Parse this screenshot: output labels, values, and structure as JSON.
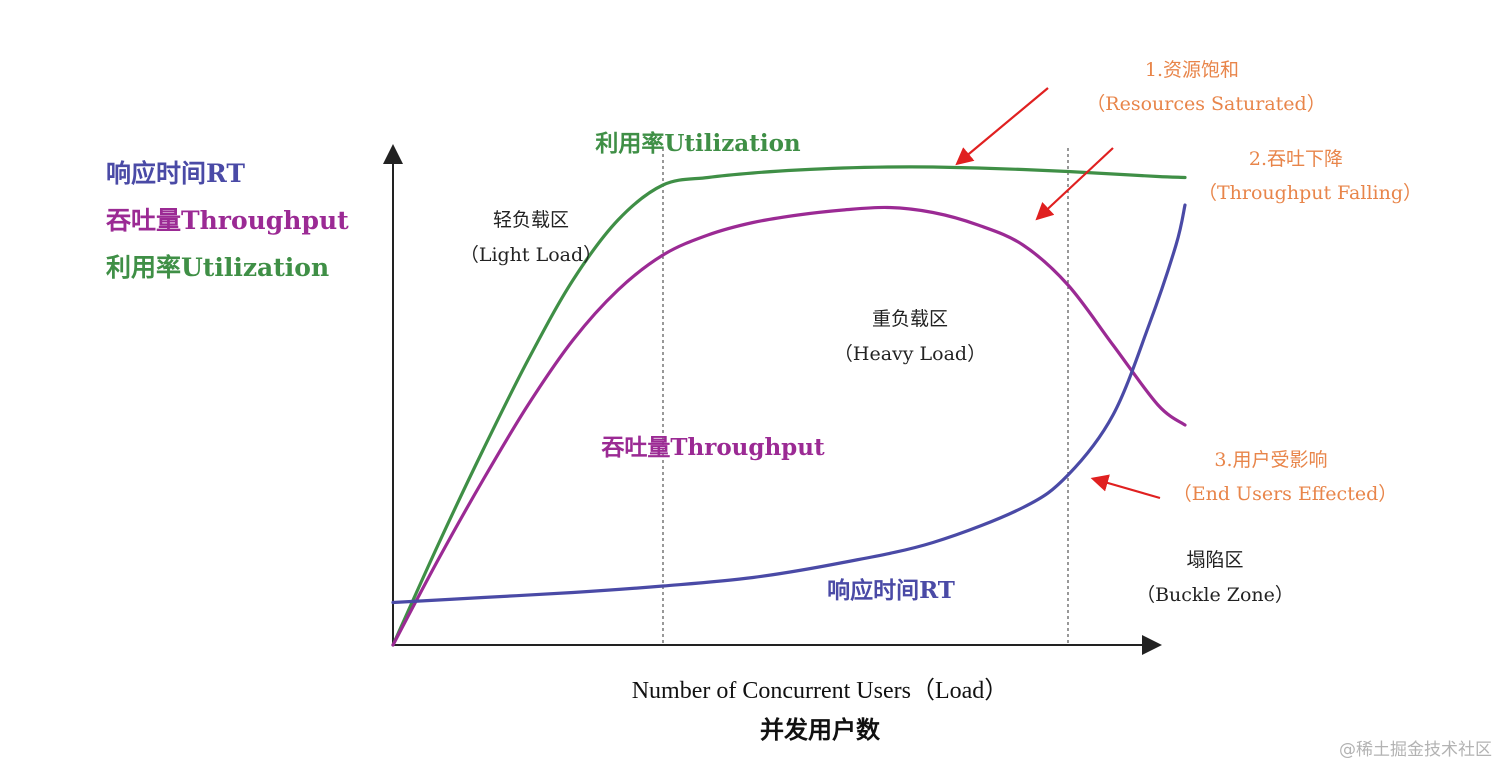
{
  "chart_data": {
    "type": "line",
    "x_range": [
      0,
      100
    ],
    "y_range": [
      0,
      100
    ],
    "xlabel": "Number of Concurrent Users（Load）",
    "xlabel_cn": "并发用户数",
    "legend": [
      {
        "label": "响应时间RT",
        "color": "#4a4aa6"
      },
      {
        "label": "吞吐量Throughput",
        "color": "#9b2a94"
      },
      {
        "label": "利用率Utilization",
        "color": "#3f8f46"
      }
    ],
    "series": [
      {
        "name": "利用率Utilization",
        "color": "#3f8f46",
        "points": [
          [
            0,
            0
          ],
          [
            5,
            20
          ],
          [
            10,
            39
          ],
          [
            15,
            57
          ],
          [
            20,
            73
          ],
          [
            25,
            85
          ],
          [
            30,
            92
          ],
          [
            35,
            93.5
          ],
          [
            40,
            94.4
          ],
          [
            45,
            95
          ],
          [
            50,
            95.4
          ],
          [
            55,
            95.6
          ],
          [
            60,
            95.6
          ],
          [
            65,
            95.4
          ],
          [
            70,
            95.1
          ],
          [
            75,
            94.7
          ],
          [
            80,
            94.2
          ],
          [
            85,
            93.7
          ],
          [
            88,
            93.5
          ]
        ]
      },
      {
        "name": "吞吐量Throughput",
        "color": "#9b2a94",
        "points": [
          [
            0,
            0
          ],
          [
            5,
            17
          ],
          [
            10,
            33
          ],
          [
            15,
            48
          ],
          [
            20,
            61
          ],
          [
            25,
            71
          ],
          [
            30,
            78
          ],
          [
            35,
            82
          ],
          [
            40,
            84.5
          ],
          [
            45,
            86
          ],
          [
            50,
            87
          ],
          [
            55,
            87.5
          ],
          [
            60,
            86.5
          ],
          [
            65,
            84
          ],
          [
            70,
            80
          ],
          [
            75,
            72
          ],
          [
            80,
            60
          ],
          [
            85,
            48
          ],
          [
            88,
            44
          ]
        ]
      },
      {
        "name": "响应时间RT",
        "color": "#4a4aa6",
        "points": [
          [
            0,
            8.5
          ],
          [
            10,
            9.5
          ],
          [
            20,
            10.5
          ],
          [
            30,
            11.8
          ],
          [
            40,
            13.5
          ],
          [
            50,
            16.5
          ],
          [
            60,
            20.5
          ],
          [
            70,
            27.5
          ],
          [
            75,
            34
          ],
          [
            80,
            46
          ],
          [
            84,
            64
          ],
          [
            87,
            80
          ],
          [
            88,
            88
          ]
        ]
      }
    ],
    "zones": [
      {
        "title": "轻负载区",
        "subtitle": "（Light Load）",
        "x_end": 30
      },
      {
        "title": "重负载区",
        "subtitle": "（Heavy Load）",
        "x_end": 75
      },
      {
        "title": "塌陷区",
        "subtitle": "（Buckle Zone）"
      }
    ],
    "series_labels": {
      "utilization": "利用率Utilization",
      "throughput": "吞吐量Throughput",
      "rt": "响应时间RT"
    },
    "annotations": [
      {
        "title": "1.资源饱和",
        "subtitle": "（Resources Saturated）",
        "color": "#e8854a"
      },
      {
        "title": "2.吞吐下降",
        "subtitle": "（Throughput Falling）",
        "color": "#e8854a"
      },
      {
        "title": "3.用户受影响",
        "subtitle": "（End Users Effected）",
        "color": "#e8854a"
      }
    ],
    "arrow_color": "#e02020",
    "grid": false
  },
  "watermark": "@稀土掘金技术社区"
}
